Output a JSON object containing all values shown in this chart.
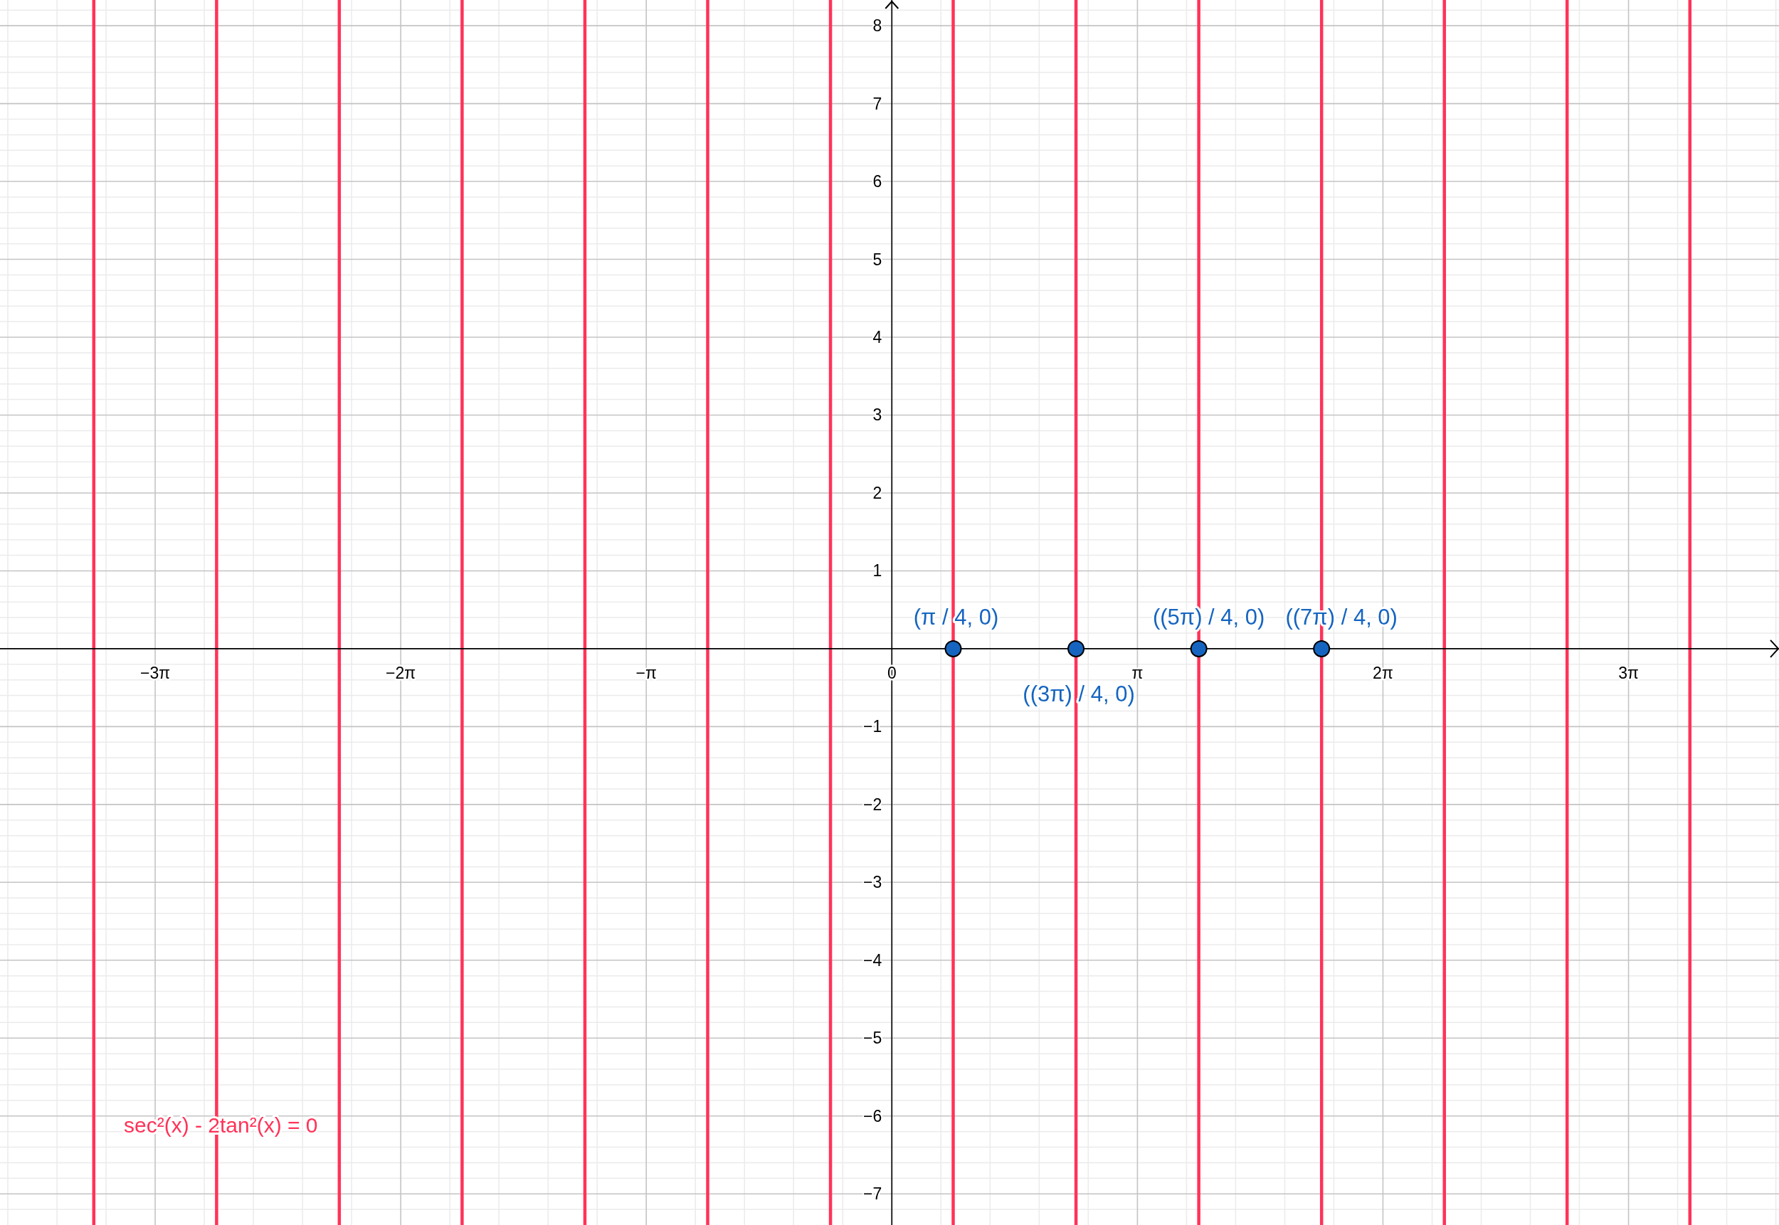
{
  "chart_data": {
    "type": "scatter",
    "x": [
      0.785,
      2.356,
      3.927,
      5.498
    ],
    "values": [
      0,
      0,
      0,
      0
    ],
    "color": "#1565c0",
    "marker": "circle",
    "value_labels": [
      "(π / 4, 0)",
      "((3π) / 4, 0)",
      "((5π) / 4, 0)",
      "((7π) / 4, 0)"
    ],
    "xlim": [
      -11.41,
      11.35
    ],
    "ylim": [
      -7.4,
      8.33
    ],
    "xticks": [
      {
        "value": -11.31,
        "label": null
      },
      {
        "value": -10.681,
        "label": null
      },
      {
        "value": -10.053,
        "label": null
      },
      {
        "value": -9.425,
        "label": "−3π"
      },
      {
        "value": -8.796,
        "label": null
      },
      {
        "value": -8.168,
        "label": null
      },
      {
        "value": -7.54,
        "label": null
      },
      {
        "value": -6.912,
        "label": null
      },
      {
        "value": -6.283,
        "label": "−2π"
      },
      {
        "value": -5.655,
        "label": null
      },
      {
        "value": -5.027,
        "label": null
      },
      {
        "value": -4.398,
        "label": null
      },
      {
        "value": -3.77,
        "label": null
      },
      {
        "value": -3.142,
        "label": "−π"
      },
      {
        "value": -2.513,
        "label": null
      },
      {
        "value": -1.885,
        "label": null
      },
      {
        "value": -1.257,
        "label": null
      },
      {
        "value": -0.628,
        "label": null
      },
      {
        "value": 0,
        "label": "0"
      },
      {
        "value": 0.628,
        "label": null
      },
      {
        "value": 1.257,
        "label": null
      },
      {
        "value": 1.885,
        "label": null
      },
      {
        "value": 2.513,
        "label": null
      },
      {
        "value": 3.142,
        "label": "π"
      },
      {
        "value": 3.77,
        "label": null
      },
      {
        "value": 4.398,
        "label": null
      },
      {
        "value": 5.027,
        "label": null
      },
      {
        "value": 5.655,
        "label": null
      },
      {
        "value": 6.283,
        "label": "2π"
      },
      {
        "value": 6.912,
        "label": null
      },
      {
        "value": 7.54,
        "label": null
      },
      {
        "value": 8.168,
        "label": null
      },
      {
        "value": 8.796,
        "label": null
      },
      {
        "value": 9.425,
        "label": "3π"
      },
      {
        "value": 10.053,
        "label": null
      },
      {
        "value": 10.681,
        "label": null
      },
      {
        "value": 11.31,
        "label": null
      }
    ],
    "yticks": [
      {
        "value": -7.2,
        "label": null
      },
      {
        "value": -7,
        "label": "−7"
      },
      {
        "value": -6.8,
        "label": null
      },
      {
        "value": -6.6,
        "label": null
      },
      {
        "value": -6.4,
        "label": null
      },
      {
        "value": -6.2,
        "label": null
      },
      {
        "value": -6,
        "label": "−6"
      },
      {
        "value": -5.8,
        "label": null
      },
      {
        "value": -5.6,
        "label": null
      },
      {
        "value": -5.4,
        "label": null
      },
      {
        "value": -5.2,
        "label": null
      },
      {
        "value": -5,
        "label": "−5"
      },
      {
        "value": -4.8,
        "label": null
      },
      {
        "value": -4.6,
        "label": null
      },
      {
        "value": -4.4,
        "label": null
      },
      {
        "value": -4.2,
        "label": null
      },
      {
        "value": -4,
        "label": "−4"
      },
      {
        "value": -3.8,
        "label": null
      },
      {
        "value": -3.6,
        "label": null
      },
      {
        "value": -3.4,
        "label": null
      },
      {
        "value": -3.2,
        "label": null
      },
      {
        "value": -3,
        "label": "−3"
      },
      {
        "value": -2.8,
        "label": null
      },
      {
        "value": -2.6,
        "label": null
      },
      {
        "value": -2.4,
        "label": null
      },
      {
        "value": -2.2,
        "label": null
      },
      {
        "value": -2,
        "label": "−2"
      },
      {
        "value": -1.8,
        "label": null
      },
      {
        "value": -1.6,
        "label": null
      },
      {
        "value": -1.4,
        "label": null
      },
      {
        "value": -1.2,
        "label": null
      },
      {
        "value": -1,
        "label": "−1"
      },
      {
        "value": -0.8,
        "label": null
      },
      {
        "value": -0.6,
        "label": null
      },
      {
        "value": -0.4,
        "label": null
      },
      {
        "value": -0.2,
        "label": null
      },
      {
        "value": 0,
        "label": null
      },
      {
        "value": 0.2,
        "label": null
      },
      {
        "value": 0.4,
        "label": null
      },
      {
        "value": 0.6,
        "label": null
      },
      {
        "value": 0.8,
        "label": null
      },
      1,
      {
        "value": 1.2,
        "label": null
      },
      {
        "value": 1.4,
        "label": null
      },
      {
        "value": 1.6,
        "label": null
      },
      {
        "value": 1.8,
        "label": null
      },
      2,
      {
        "value": 2.2,
        "label": null
      },
      {
        "value": 2.4,
        "label": null
      },
      {
        "value": 2.6,
        "label": null
      },
      {
        "value": 2.8,
        "label": null
      },
      3,
      {
        "value": 3.2,
        "label": null
      },
      {
        "value": 3.4,
        "label": null
      },
      {
        "value": 3.6,
        "label": null
      },
      {
        "value": 3.8,
        "label": null
      },
      4,
      {
        "value": 4.2,
        "label": null
      },
      {
        "value": 4.4,
        "label": null
      },
      {
        "value": 4.6,
        "label": null
      },
      {
        "value": 4.8,
        "label": null
      },
      5,
      {
        "value": 5.2,
        "label": null
      },
      {
        "value": 5.4,
        "label": null
      },
      {
        "value": 5.6,
        "label": null
      },
      {
        "value": 5.8,
        "label": null
      },
      6,
      {
        "value": 6.2,
        "label": null
      },
      {
        "value": 6.4,
        "label": null
      },
      {
        "value": 6.6,
        "label": null
      },
      {
        "value": 6.8,
        "label": null
      },
      7,
      {
        "value": 7.2,
        "label": null
      },
      {
        "value": 7.4,
        "label": null
      },
      {
        "value": 7.6,
        "label": null
      },
      {
        "value": 7.8,
        "label": null
      },
      8,
      {
        "value": 8.2,
        "label": null
      }
    ],
    "grid": true,
    "ref_lines": [
      {
        "axis": "x",
        "value": -10.21,
        "color": "#ff3358"
      },
      {
        "axis": "x",
        "value": -8.639,
        "color": "#ff3358"
      },
      {
        "axis": "x",
        "value": -7.069,
        "color": "#ff3358"
      },
      {
        "axis": "x",
        "value": -5.498,
        "color": "#ff3358"
      },
      {
        "axis": "x",
        "value": -3.927,
        "color": "#ff3358"
      },
      {
        "axis": "x",
        "value": -2.356,
        "color": "#ff3358"
      },
      {
        "axis": "x",
        "value": -0.785,
        "color": "#ff3358"
      },
      {
        "axis": "x",
        "value": 0.785,
        "color": "#ff3358"
      },
      {
        "axis": "x",
        "value": 2.356,
        "color": "#ff3358"
      },
      {
        "axis": "x",
        "value": 3.927,
        "color": "#ff3358"
      },
      {
        "axis": "x",
        "value": 5.498,
        "color": "#ff3358"
      },
      {
        "axis": "x",
        "value": 7.069,
        "color": "#ff3358"
      },
      {
        "axis": "x",
        "value": 8.639,
        "color": "#ff3358"
      },
      {
        "axis": "x",
        "value": 10.21,
        "color": "#ff3358"
      }
    ],
    "annotations": [
      "sec²(x) - 2tan²(x) = 0"
    ]
  }
}
